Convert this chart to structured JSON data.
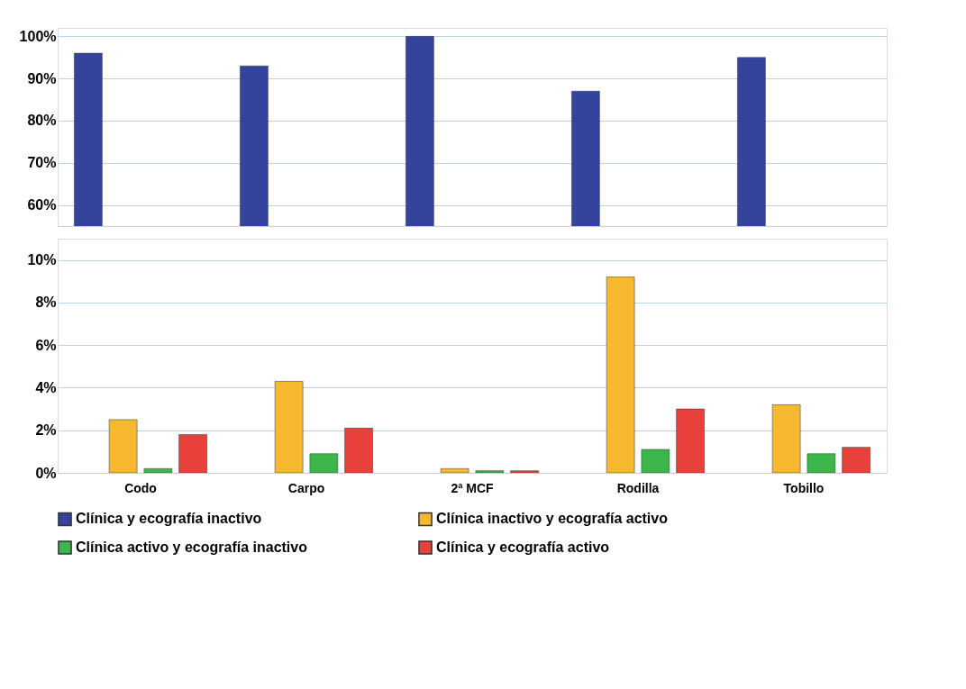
{
  "chart_data": [
    {
      "type": "bar",
      "categories": [
        null,
        null,
        null,
        null,
        null
      ],
      "ylim": [
        55,
        102
      ],
      "yticks": [
        {
          "value": 60,
          "label": "60%"
        },
        {
          "value": 70,
          "label": "70%"
        },
        {
          "value": 80,
          "label": "80%"
        },
        {
          "value": 90,
          "label": "90%"
        },
        {
          "value": 100,
          "label": "100%"
        }
      ],
      "grid": "y",
      "tick_labels": "y",
      "legend": "bottom",
      "series": [
        {
          "name": "Clínica y ecografía inactivo",
          "color": "#34449c",
          "values": [
            96,
            93,
            100,
            87,
            95
          ]
        }
      ]
    },
    {
      "type": "bar",
      "categories": [
        "Codo",
        "Carpo",
        "2ª MCF",
        "Rodilla",
        "Tobillo"
      ],
      "ylim": [
        0,
        11
      ],
      "yticks": [
        {
          "value": 0,
          "label": "0%"
        },
        {
          "value": 2,
          "label": "2%"
        },
        {
          "value": 4,
          "label": "4%"
        },
        {
          "value": 6,
          "label": "6%"
        },
        {
          "value": 8,
          "label": "8%"
        },
        {
          "value": 10,
          "label": "10%"
        }
      ],
      "grid": "y",
      "legend": "bottom",
      "series": [
        {
          "name": "Clínica inactivo y ecografía activo",
          "color": "#f5b82e",
          "values": [
            2.5,
            4.3,
            0.2,
            9.2,
            3.2
          ]
        },
        {
          "name": "Clínica activo y ecografía inactivo",
          "color": "#3cb64a",
          "values": [
            0.2,
            0.9,
            0.1,
            1.1,
            0.9
          ]
        },
        {
          "name": "Clínica y ecografía activo",
          "color": "#e8403a",
          "values": [
            1.8,
            2.1,
            0.1,
            3.0,
            1.2
          ]
        }
      ]
    }
  ]
}
